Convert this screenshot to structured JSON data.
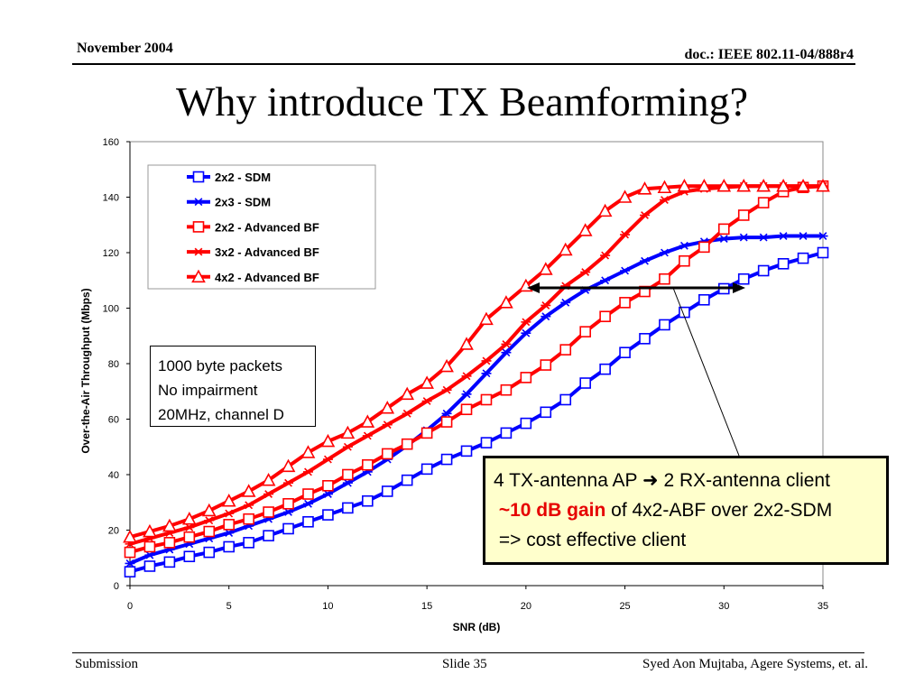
{
  "header": {
    "date": "November 2004",
    "doc": "doc.: IEEE 802.11-04/888r4"
  },
  "title": "Why introduce TX Beamforming?",
  "footer": {
    "left": "Submission",
    "center": "Slide 35",
    "right": "Syed Aon Mujtaba, Agere Systems, et. al."
  },
  "note": {
    "lines": [
      "1000 byte packets",
      "No impairment",
      "20MHz, channel D"
    ]
  },
  "callout": {
    "line1_a": "4 TX-antenna AP",
    "arrow_symbol": "➜",
    "line1_b": "2 RX-antenna client",
    "gain": "~10 dB gain",
    "line2_rest": "of 4x2-ABF over 2x2-SDM",
    "line3": "=> cost effective client"
  },
  "chart_data": {
    "type": "line",
    "xlabel": "SNR (dB)",
    "ylabel": "Over-the-Air Throughput (Mbps)",
    "xlim": [
      0,
      35
    ],
    "ylim": [
      0,
      160
    ],
    "xticks": [
      0,
      5,
      10,
      15,
      20,
      25,
      30,
      35
    ],
    "yticks": [
      0,
      20,
      40,
      60,
      80,
      100,
      120,
      140,
      160
    ],
    "legend_position": "top-left",
    "x": [
      0,
      1,
      2,
      3,
      4,
      5,
      6,
      7,
      8,
      9,
      10,
      11,
      12,
      13,
      14,
      15,
      16,
      17,
      18,
      19,
      20,
      21,
      22,
      23,
      24,
      25,
      26,
      27,
      28,
      29,
      30,
      31,
      32,
      33,
      34,
      35
    ],
    "series": [
      {
        "name": "2x2 - SDM",
        "color": "#0000ff",
        "marker": "square",
        "values": [
          5,
          7,
          8.5,
          10.5,
          12,
          14,
          15.5,
          18,
          20.5,
          23,
          25.5,
          28,
          30.5,
          34,
          38,
          42,
          45.5,
          48.5,
          51.5,
          55,
          58.5,
          62.5,
          67,
          73,
          78,
          84,
          89,
          94,
          98.5,
          103,
          107,
          110.5,
          113.5,
          116,
          118,
          120
        ]
      },
      {
        "name": "2x3 - SDM",
        "color": "#0000ff",
        "marker": "star",
        "values": [
          8,
          11,
          13,
          15,
          17,
          19,
          21.5,
          24,
          26.5,
          29.5,
          33,
          37,
          41,
          45.5,
          50.5,
          56,
          62,
          69,
          76.5,
          84,
          91,
          97,
          102,
          106.5,
          110,
          113.5,
          117,
          120,
          122.5,
          124,
          125,
          125.5,
          125.5,
          126,
          126,
          126
        ]
      },
      {
        "name": "2x2 - Advanced BF",
        "color": "#ff0000",
        "marker": "square",
        "values": [
          12,
          14,
          15.5,
          17.5,
          19.5,
          22,
          24,
          26.5,
          29.5,
          33,
          36,
          40,
          43.5,
          47.5,
          51,
          55,
          59,
          63.5,
          67,
          70.5,
          75,
          79.5,
          85,
          91.5,
          97,
          102,
          106,
          110.5,
          117,
          122,
          128.5,
          133.5,
          138,
          142,
          143.5,
          144
        ]
      },
      {
        "name": "3x2 - Advanced BF",
        "color": "#ff0000",
        "marker": "star",
        "values": [
          15,
          17,
          19,
          21,
          23.5,
          26,
          29,
          33,
          37,
          41,
          45.5,
          50,
          54,
          58,
          62,
          66.5,
          70.5,
          75.5,
          81,
          87,
          95,
          101,
          108,
          113,
          119,
          126.5,
          133.5,
          139,
          142,
          143,
          143.5,
          144,
          144,
          144,
          144,
          144
        ]
      },
      {
        "name": "4x2 - Advanced BF",
        "color": "#ff0000",
        "marker": "triangle",
        "values": [
          17.5,
          19.5,
          21.5,
          24,
          27,
          30.5,
          34,
          38,
          43,
          48,
          52,
          55,
          59,
          64,
          69,
          73,
          79,
          87,
          96,
          102,
          108,
          114,
          121,
          128,
          135,
          140,
          143,
          143.5,
          144,
          144,
          144,
          144,
          144,
          144,
          144,
          144
        ]
      }
    ]
  }
}
